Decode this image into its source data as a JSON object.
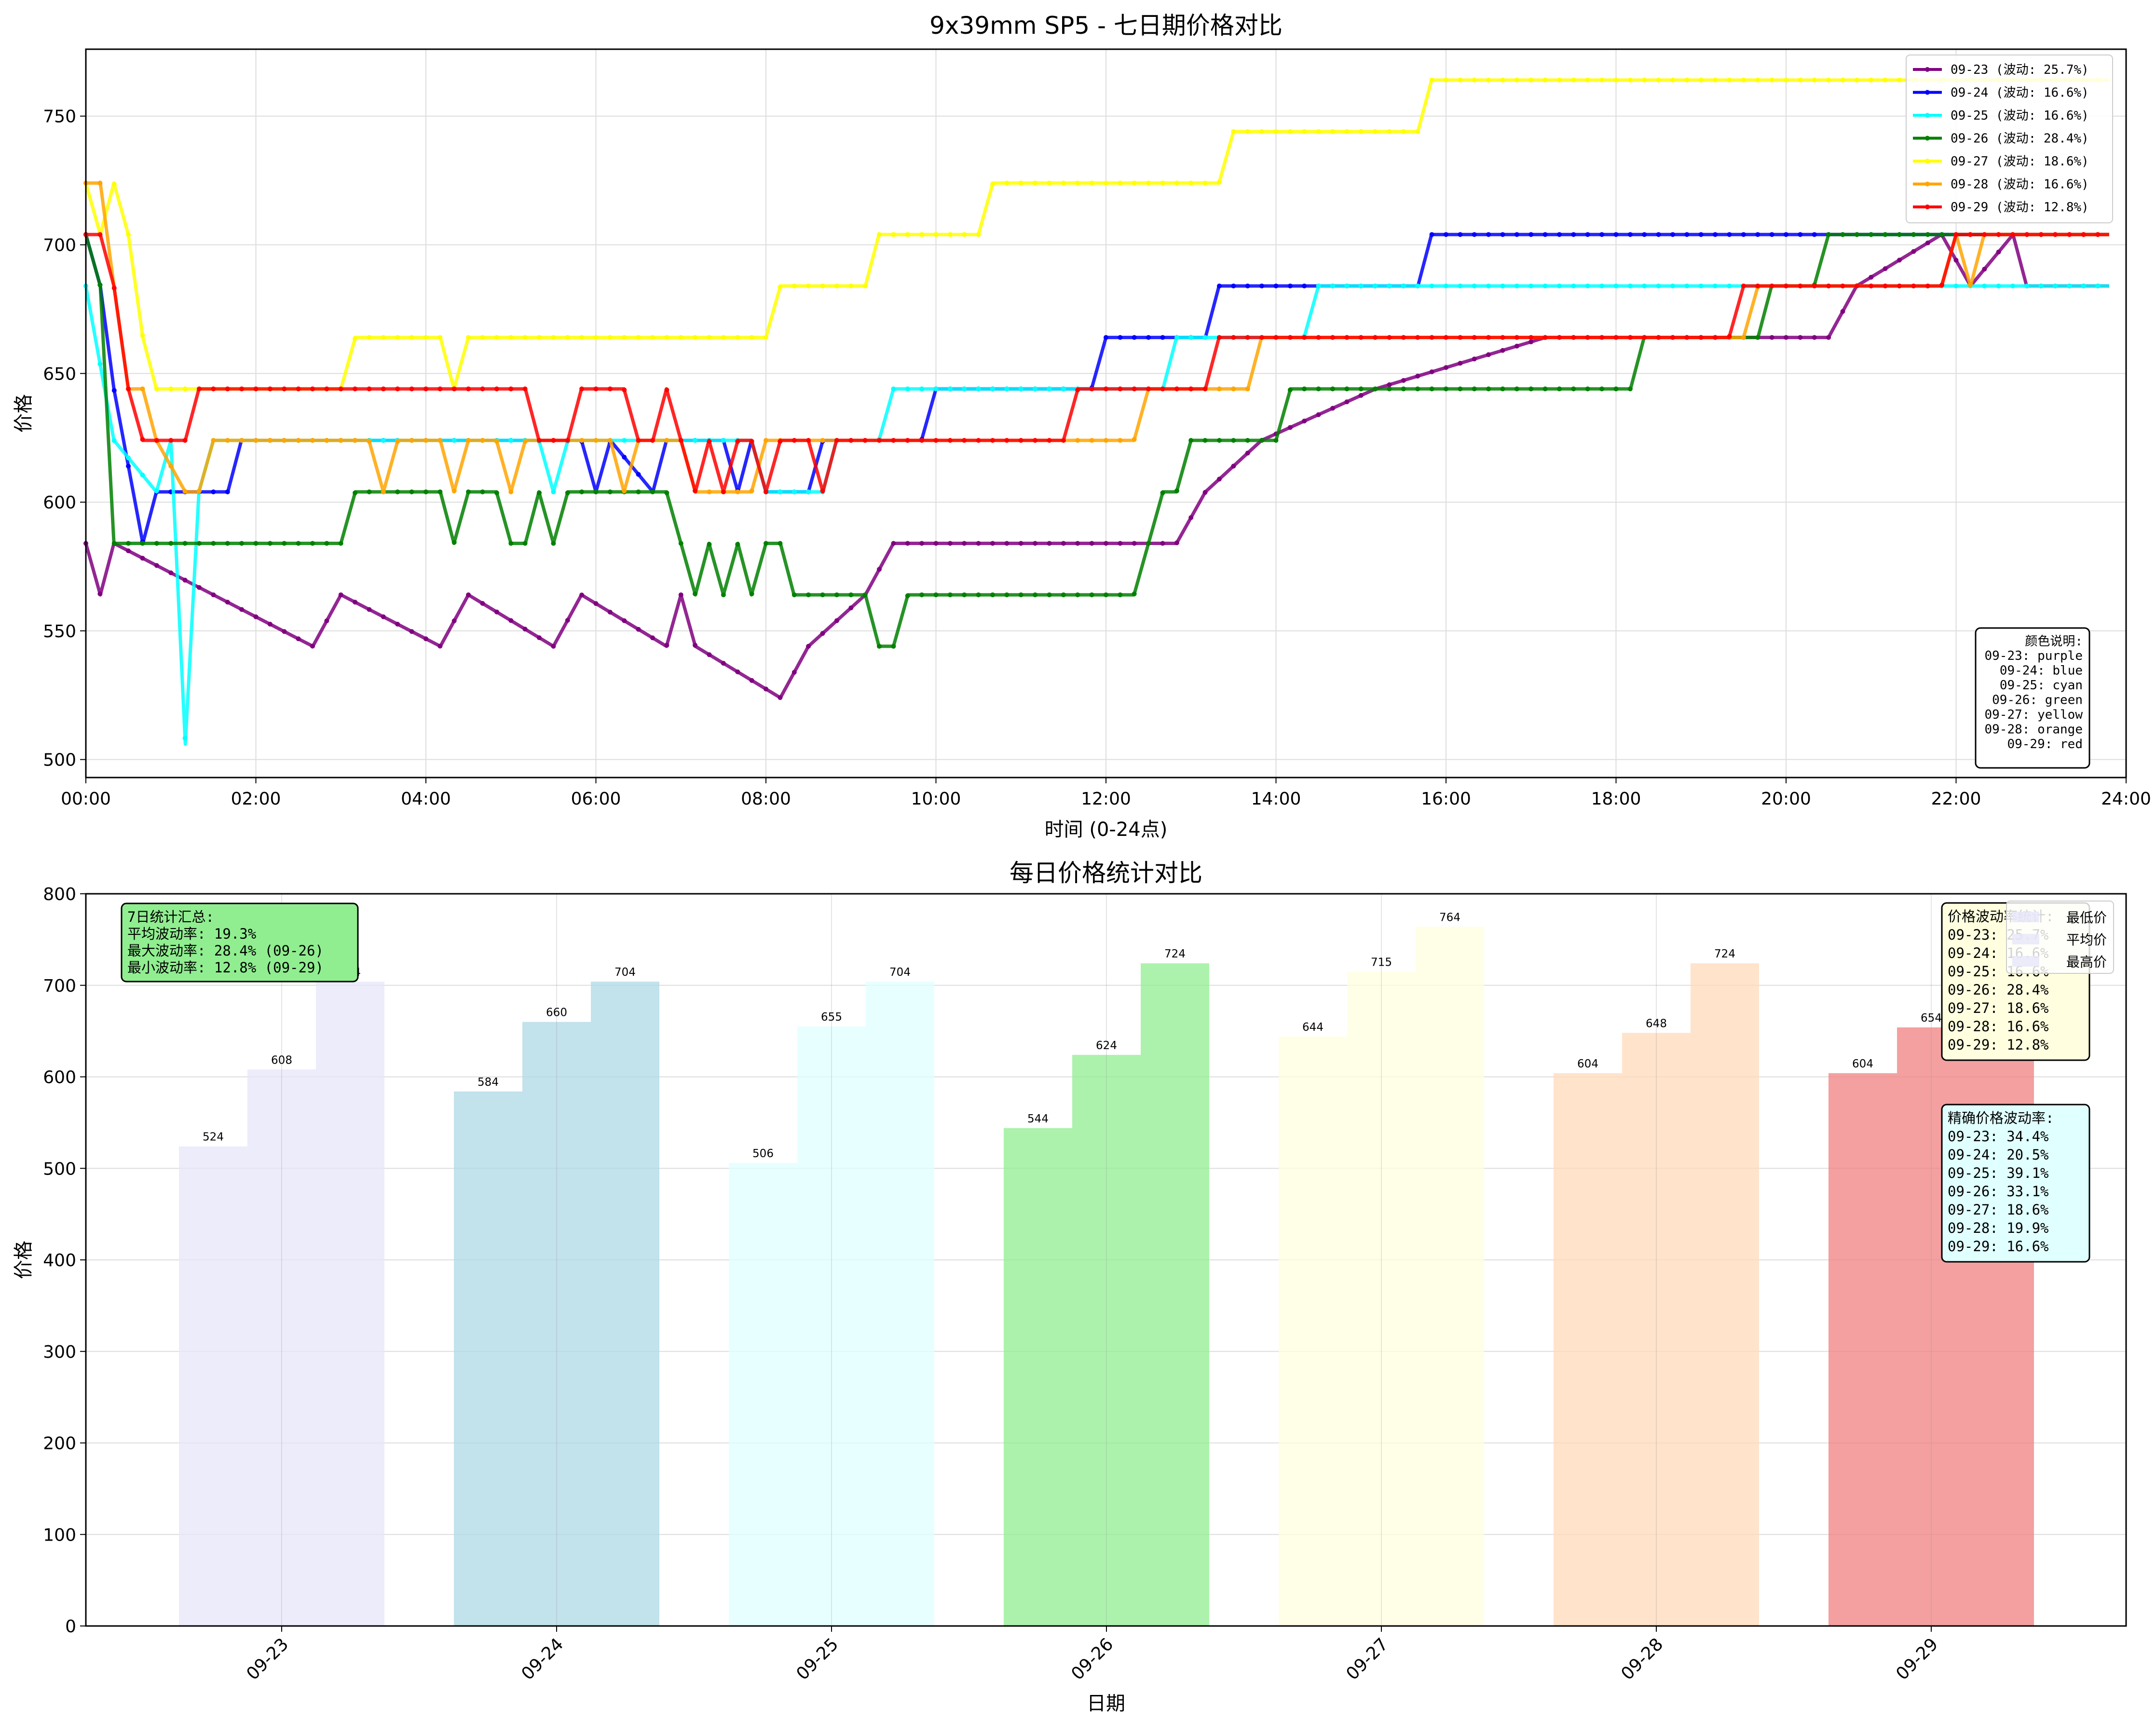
{
  "chart_data": [
    {
      "type": "line",
      "title": "9x39mm SP5 - 七日期价格对比",
      "xlabel": "时间 (0-24点)",
      "ylabel": "价格",
      "xlim": [
        0,
        24
      ],
      "ylim": [
        493,
        776
      ],
      "x_ticks": [
        "00:00",
        "02:00",
        "04:00",
        "06:00",
        "08:00",
        "10:00",
        "12:00",
        "14:00",
        "16:00",
        "18:00",
        "20:00",
        "22:00",
        "24:00"
      ],
      "y_ticks": [
        500,
        550,
        600,
        650,
        700,
        750
      ],
      "grid": true,
      "legend_position": "top-right",
      "series": [
        {
          "name": "09-23 (波动: 25.7%)",
          "color": "#800080",
          "steps": [
            [
              0,
              584
            ],
            [
              0.17,
              564
            ],
            [
              0.33,
              584
            ],
            [
              1.5,
              564
            ],
            [
              2.67,
              544
            ],
            [
              3.0,
              564
            ],
            [
              4.17,
              544
            ],
            [
              4.5,
              564
            ],
            [
              5.5,
              544
            ],
            [
              5.83,
              564
            ],
            [
              6.83,
              544
            ],
            [
              7.0,
              564
            ],
            [
              7.17,
              544
            ],
            [
              8.17,
              524
            ],
            [
              8.5,
              544
            ],
            [
              9.17,
              564
            ],
            [
              9.5,
              584
            ],
            [
              12.83,
              584
            ],
            [
              13.17,
              604
            ],
            [
              13.83,
              624
            ],
            [
              15.17,
              644
            ],
            [
              17.17,
              664
            ],
            [
              20.5,
              664
            ],
            [
              20.83,
              684
            ],
            [
              21.83,
              704
            ],
            [
              22.17,
              684
            ],
            [
              22.67,
              704
            ],
            [
              22.83,
              684
            ],
            [
              23.8,
              684
            ]
          ]
        },
        {
          "name": "09-24 (波动: 16.6%)",
          "color": "#0000FF",
          "steps": [
            [
              0,
              704
            ],
            [
              0.17,
              684
            ],
            [
              0.33,
              644
            ],
            [
              0.67,
              584
            ],
            [
              0.83,
              604
            ],
            [
              1.67,
              604
            ],
            [
              1.83,
              624
            ],
            [
              5.83,
              624
            ],
            [
              6.0,
              604
            ],
            [
              6.17,
              624
            ],
            [
              6.67,
              604
            ],
            [
              6.83,
              624
            ],
            [
              7.5,
              624
            ],
            [
              7.67,
              604
            ],
            [
              7.83,
              624
            ],
            [
              8.0,
              604
            ],
            [
              8.5,
              604
            ],
            [
              8.67,
              624
            ],
            [
              9.83,
              624
            ],
            [
              10.0,
              644
            ],
            [
              11.83,
              644
            ],
            [
              12.0,
              664
            ],
            [
              13.17,
              664
            ],
            [
              13.33,
              684
            ],
            [
              15.67,
              684
            ],
            [
              15.83,
              704
            ],
            [
              23.8,
              704
            ]
          ]
        },
        {
          "name": "09-25 (波动: 16.6%)",
          "color": "#00FFFF",
          "steps": [
            [
              0,
              684
            ],
            [
              0.33,
              624
            ],
            [
              0.83,
              604
            ],
            [
              1.0,
              624
            ],
            [
              1.17,
              506
            ],
            [
              1.33,
              604
            ],
            [
              1.5,
              624
            ],
            [
              5.33,
              624
            ],
            [
              5.5,
              604
            ],
            [
              5.67,
              624
            ],
            [
              7.83,
              624
            ],
            [
              8.0,
              604
            ],
            [
              8.67,
              604
            ],
            [
              8.83,
              624
            ],
            [
              9.33,
              624
            ],
            [
              9.5,
              644
            ],
            [
              12.67,
              644
            ],
            [
              12.83,
              664
            ],
            [
              14.33,
              664
            ],
            [
              14.5,
              684
            ],
            [
              23.8,
              684
            ]
          ]
        },
        {
          "name": "09-26 (波动: 28.4%)",
          "color": "#008000",
          "steps": [
            [
              0,
              704
            ],
            [
              0.17,
              684
            ],
            [
              0.33,
              584
            ],
            [
              3.0,
              584
            ],
            [
              3.17,
              604
            ],
            [
              4.17,
              604
            ],
            [
              4.33,
              584
            ],
            [
              4.5,
              604
            ],
            [
              4.83,
              604
            ],
            [
              5.0,
              584
            ],
            [
              5.17,
              584
            ],
            [
              5.33,
              604
            ],
            [
              5.5,
              584
            ],
            [
              5.67,
              604
            ],
            [
              6.83,
              604
            ],
            [
              7.0,
              584
            ],
            [
              7.17,
              564
            ],
            [
              7.33,
              584
            ],
            [
              7.5,
              564
            ],
            [
              7.67,
              584
            ],
            [
              7.83,
              564
            ],
            [
              8.0,
              584
            ],
            [
              8.17,
              584
            ],
            [
              8.33,
              564
            ],
            [
              9.0,
              564
            ],
            [
              9.17,
              564
            ],
            [
              9.33,
              544
            ],
            [
              9.5,
              544
            ],
            [
              9.67,
              564
            ],
            [
              12.33,
              564
            ],
            [
              12.67,
              604
            ],
            [
              12.83,
              604
            ],
            [
              13.0,
              624
            ],
            [
              14.0,
              624
            ],
            [
              14.17,
              644
            ],
            [
              18.17,
              644
            ],
            [
              18.33,
              664
            ],
            [
              19.67,
              664
            ],
            [
              19.83,
              684
            ],
            [
              20.33,
              684
            ],
            [
              20.5,
              704
            ],
            [
              21.83,
              704
            ],
            [
              22.0,
              704
            ],
            [
              23.8,
              704
            ]
          ]
        },
        {
          "name": "09-27 (波动: 18.6%)",
          "color": "#FFFF00",
          "steps": [
            [
              0,
              724
            ],
            [
              0.17,
              704
            ],
            [
              0.33,
              724
            ],
            [
              0.5,
              704
            ],
            [
              0.67,
              664
            ],
            [
              0.83,
              644
            ],
            [
              2.83,
              644
            ],
            [
              3.0,
              644
            ],
            [
              3.17,
              664
            ],
            [
              4.17,
              664
            ],
            [
              4.33,
              644
            ],
            [
              4.5,
              664
            ],
            [
              8.0,
              664
            ],
            [
              8.17,
              684
            ],
            [
              9.17,
              684
            ],
            [
              9.33,
              704
            ],
            [
              10.5,
              704
            ],
            [
              10.67,
              724
            ],
            [
              13.33,
              724
            ],
            [
              13.5,
              744
            ],
            [
              15.67,
              744
            ],
            [
              15.83,
              764
            ],
            [
              23.8,
              764
            ]
          ]
        },
        {
          "name": "09-28 (波动: 16.6%)",
          "color": "#FFA500",
          "steps": [
            [
              0,
              724
            ],
            [
              0.17,
              724
            ],
            [
              0.33,
              684
            ],
            [
              0.5,
              644
            ],
            [
              0.67,
              644
            ],
            [
              0.83,
              624
            ],
            [
              1.17,
              604
            ],
            [
              1.33,
              604
            ],
            [
              1.5,
              624
            ],
            [
              3.33,
              624
            ],
            [
              3.5,
              604
            ],
            [
              3.67,
              624
            ],
            [
              4.0,
              624
            ],
            [
              4.17,
              624
            ],
            [
              4.33,
              604
            ],
            [
              4.5,
              624
            ],
            [
              4.83,
              624
            ],
            [
              5.0,
              604
            ],
            [
              5.17,
              624
            ],
            [
              6.17,
              624
            ],
            [
              6.33,
              604
            ],
            [
              6.5,
              624
            ],
            [
              7.0,
              624
            ],
            [
              7.17,
              604
            ],
            [
              7.83,
              604
            ],
            [
              8.0,
              624
            ],
            [
              12.33,
              624
            ],
            [
              12.5,
              644
            ],
            [
              13.67,
              644
            ],
            [
              13.83,
              664
            ],
            [
              19.5,
              664
            ],
            [
              19.67,
              684
            ],
            [
              21.83,
              684
            ],
            [
              22.0,
              704
            ],
            [
              22.17,
              684
            ],
            [
              22.33,
              704
            ],
            [
              23.8,
              704
            ]
          ]
        },
        {
          "name": "09-29 (波动: 12.8%)",
          "color": "#FF0000",
          "steps": [
            [
              0,
              704
            ],
            [
              0.17,
              704
            ],
            [
              0.33,
              684
            ],
            [
              0.5,
              644
            ],
            [
              0.67,
              624
            ],
            [
              1.17,
              624
            ],
            [
              1.33,
              644
            ],
            [
              5.17,
              644
            ],
            [
              5.33,
              624
            ],
            [
              5.67,
              624
            ],
            [
              5.83,
              644
            ],
            [
              6.33,
              644
            ],
            [
              6.5,
              624
            ],
            [
              6.67,
              624
            ],
            [
              6.83,
              644
            ],
            [
              7.0,
              624
            ],
            [
              7.17,
              604
            ],
            [
              7.33,
              624
            ],
            [
              7.5,
              604
            ],
            [
              7.67,
              624
            ],
            [
              7.83,
              624
            ],
            [
              8.0,
              604
            ],
            [
              8.17,
              624
            ],
            [
              8.5,
              624
            ],
            [
              8.67,
              604
            ],
            [
              8.83,
              624
            ],
            [
              11.5,
              624
            ],
            [
              11.67,
              644
            ],
            [
              13.17,
              644
            ],
            [
              13.33,
              664
            ],
            [
              19.33,
              664
            ],
            [
              19.5,
              684
            ],
            [
              21.83,
              684
            ],
            [
              22.0,
              704
            ],
            [
              23.8,
              704
            ]
          ]
        }
      ],
      "note_box": {
        "title": "颜色说明:",
        "lines": [
          "09-23: purple",
          "09-24: blue",
          "09-25: cyan",
          "09-26: green",
          "09-27: yellow",
          "09-28: orange",
          "09-29: red"
        ]
      }
    },
    {
      "type": "bar",
      "title": "每日价格统计对比",
      "xlabel": "日期",
      "ylabel": "价格",
      "ylim": [
        0,
        800
      ],
      "y_ticks": [
        0,
        100,
        200,
        300,
        400,
        500,
        600,
        700,
        800
      ],
      "grid": true,
      "categories": [
        "09-23",
        "09-24",
        "09-25",
        "09-26",
        "09-27",
        "09-28",
        "09-29"
      ],
      "bar_colors": [
        "#E6E6FA",
        "#ADD8E6",
        "#E0FFFF",
        "#90EE90",
        "#FFFFE0",
        "#FFDAB9",
        "#F08080"
      ],
      "series": [
        {
          "name": "最低价",
          "values": [
            524,
            584,
            506,
            544,
            644,
            604,
            604
          ]
        },
        {
          "name": "平均价",
          "values": [
            608,
            660,
            655,
            624,
            715,
            648,
            654
          ]
        },
        {
          "name": "最高价",
          "values": [
            704,
            704,
            704,
            724,
            764,
            724,
            704
          ]
        }
      ],
      "legend_position": "top-right",
      "summary_box": {
        "lines": [
          "7日统计汇总:",
          "平均波动率: 19.3%",
          "最大波动率: 28.4% (09-26)",
          "最小波动率: 12.8% (09-29)"
        ],
        "color": "#90EE90"
      },
      "volatility_box": {
        "title": "价格波动率统计:",
        "lines": [
          "09-23: 25.7%",
          "09-24: 16.6%",
          "09-25: 16.6%",
          "09-26: 28.4%",
          "09-27: 18.6%",
          "09-28: 16.6%",
          "09-29: 12.8%"
        ],
        "color": "#FFFFE0"
      },
      "precise_box": {
        "title": "精确价格波动率:",
        "lines": [
          "09-23: 34.4%",
          "09-24: 20.5%",
          "09-25: 39.1%",
          "09-26: 33.1%",
          "09-27: 18.6%",
          "09-28: 19.9%",
          "09-29: 16.6%"
        ],
        "color": "#E0FFFF"
      }
    }
  ]
}
